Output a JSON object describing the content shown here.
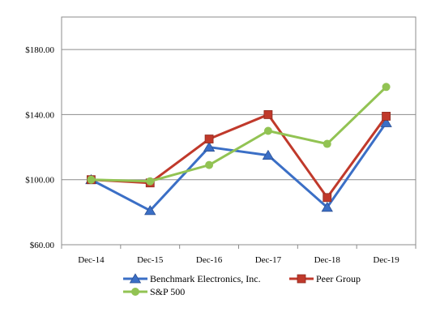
{
  "chart_data": {
    "type": "line",
    "title": "",
    "xlabel": "",
    "ylabel": "",
    "categories": [
      "Dec-14",
      "Dec-15",
      "Dec-16",
      "Dec-17",
      "Dec-18",
      "Dec-19"
    ],
    "ylim": [
      60,
      200
    ],
    "yticks": [
      60,
      100,
      140,
      180
    ],
    "ytick_labels": [
      "$60.00",
      "$100.00",
      "$140.00",
      "$180.00"
    ],
    "grid": true,
    "legend_position": "bottom",
    "series": [
      {
        "name": "Benchmark Electronics, Inc.",
        "marker": "triangle",
        "color": "#3B6FC6",
        "values": [
          100,
          81,
          120,
          115,
          83,
          135
        ]
      },
      {
        "name": "Peer Group",
        "marker": "square",
        "color": "#C0392B",
        "values": [
          100,
          98,
          125,
          140,
          89,
          139
        ]
      },
      {
        "name": "S&P 500",
        "marker": "circle",
        "color": "#92C353",
        "values": [
          100,
          99,
          109,
          130,
          122,
          157
        ]
      }
    ]
  }
}
